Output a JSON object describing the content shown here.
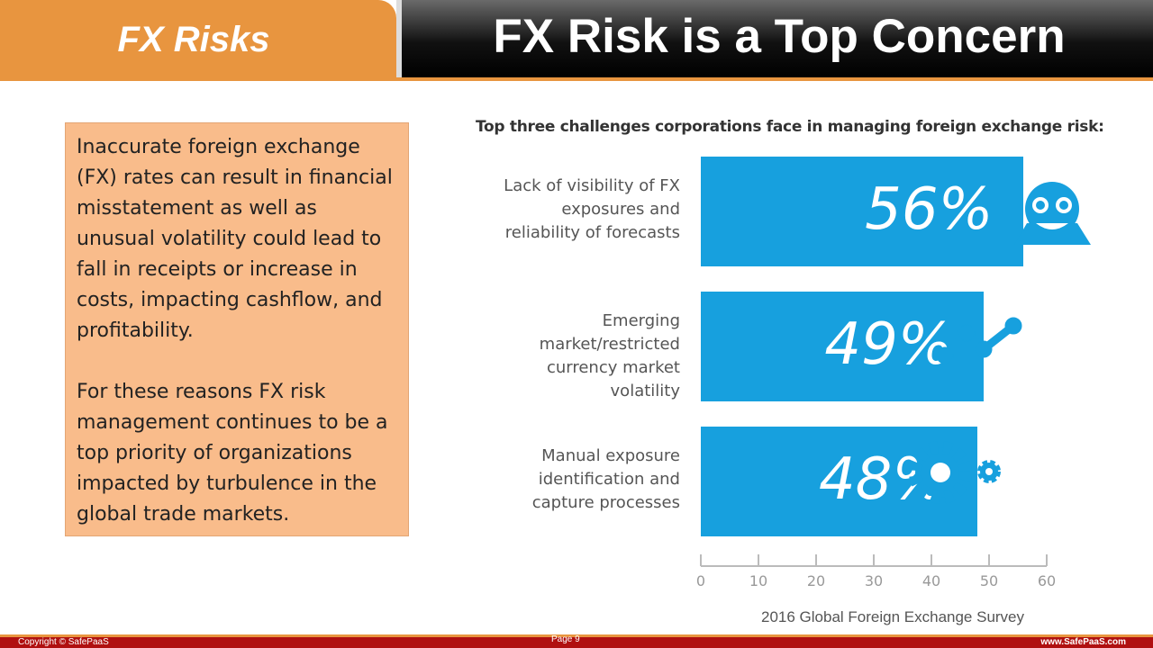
{
  "header": {
    "section": "FX Risks",
    "title": "FX Risk is a Top Concern"
  },
  "body": {
    "paragraphs": [
      "Inaccurate foreign exchange (FX) rates can result in financial misstatement as well as unusual volatility could lead to fall in receipts or increase in costs, impacting cashflow, and profitability.",
      "For these reasons FX risk management continues to be a top priority of organizations impacted by turbulence in the global trade markets."
    ]
  },
  "chart_data": {
    "type": "bar",
    "title": "Top three challenges corporations face in managing foreign exchange risk:",
    "categories": [
      "Lack of visibility of FX exposures and reliability of forecasts",
      "Emerging market/restricted currency market volatility",
      "Manual exposure identification and capture processes"
    ],
    "values": [
      56,
      49,
      48
    ],
    "value_labels": [
      "56%",
      "49%",
      "48%"
    ],
    "color": "#17a0de",
    "xlim": [
      0,
      60
    ],
    "xticks": [
      0,
      10,
      20,
      30,
      40,
      50,
      60
    ]
  },
  "source": "2016 Global Foreign Exchange Survey",
  "footer": {
    "copyright": "Copyright © SafePaaS",
    "page": "Page 9",
    "website": "www.SafePaaS.com"
  }
}
